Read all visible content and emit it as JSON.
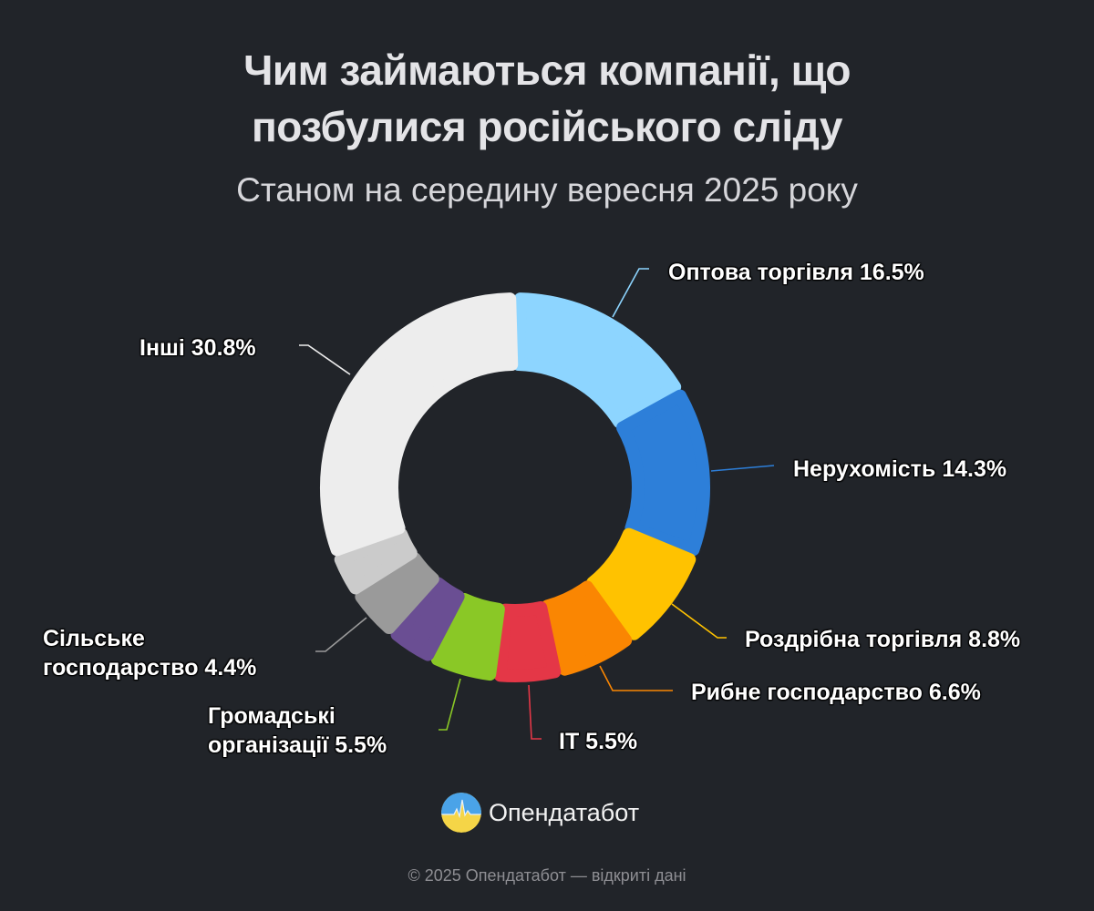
{
  "header": {
    "title_line1": "Чим займаються компанії, що",
    "title_line2": "позбулися російського сліду",
    "subtitle": "Станом на середину вересня 2025 року"
  },
  "chart_data": {
    "type": "pie",
    "variant": "donut",
    "title": "Чим займаються компанії, що позбулися російського сліду",
    "subtitle": "Станом на середину вересня 2025 року",
    "unit": "%",
    "start_angle": "12 o'clock, clockwise",
    "segments": [
      {
        "label": "Оптова торгівля",
        "value": 16.5,
        "color": "#8DD5FF",
        "display": "Оптова торгівля 16.5%"
      },
      {
        "label": "Нерухомість",
        "value": 14.3,
        "color": "#2D7FD9",
        "display": "Нерухомість 14.3%"
      },
      {
        "label": "Роздрібна торгівля",
        "value": 8.8,
        "color": "#FFC200",
        "display": "Роздрібна торгівля 8.8%"
      },
      {
        "label": "Рибне господарство",
        "value": 6.6,
        "color": "#FA8602",
        "display": "Рибне господарство 6.6%"
      },
      {
        "label": "IT",
        "value": 5.5,
        "color": "#E43747",
        "display": "IT 5.5%"
      },
      {
        "label": "Громадські організації",
        "value": 5.5,
        "color": "#8AC826",
        "display_line1": "Громадські",
        "display_line2": "організації 5.5%"
      },
      {
        "label": "",
        "value": 4.0,
        "color": "#6A4E93",
        "display": ""
      },
      {
        "label": "Сільське господарство",
        "value": 4.4,
        "color": "#9A9A9A",
        "display_line1": "Сільське",
        "display_line2": "господарство 4.4%"
      },
      {
        "label": "",
        "value": 3.6,
        "color": "#CBCBCB",
        "display": ""
      },
      {
        "label": "Інші",
        "value": 30.8,
        "color": "#EDEDED",
        "display": "Інші 30.8%"
      }
    ]
  },
  "brand": {
    "name": "Опендатабот"
  },
  "footer": {
    "text": "© 2025 Опендатабот — відкриті дані"
  }
}
